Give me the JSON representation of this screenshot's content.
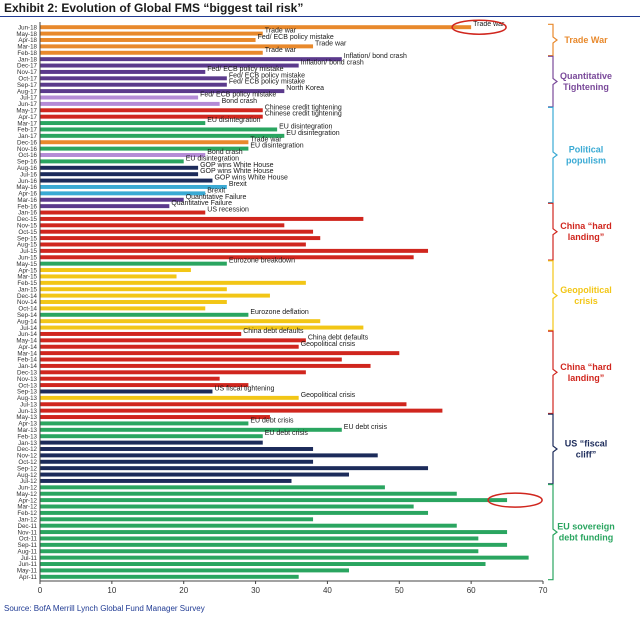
{
  "header": {
    "title": "Exhibit 2: Evolution of Global FMS “biggest tail risk”"
  },
  "footer": {
    "source": "Source:  BofA Merrill Lynch Global Fund Manager Survey"
  },
  "colors": {
    "trade": "#e8892c",
    "qt": "#7a4a9a",
    "purple": "#5b3a8c",
    "green": "#2aa560",
    "blue": "#3aaad4",
    "red": "#d0261e",
    "yellow": "#f2c616",
    "navy": "#1c2b5a",
    "violet": "#b48bd6",
    "bracket_trade": "#e8892c",
    "bracket_qt": "#7a4a9a",
    "bracket_pop": "#3aaad4",
    "bracket_china": "#d0261e",
    "bracket_geo": "#f2c616",
    "bracket_fiscal": "#1c2b5a",
    "bracket_eu": "#2aa560",
    "highlight": "#d0261e",
    "axis": "#444444"
  },
  "chart_data": {
    "type": "bar",
    "orientation": "horizontal",
    "title": "Exhibit 2: Evolution of Global FMS “biggest tail risk”",
    "xlabel": "",
    "ylabel": "",
    "xlim": [
      0,
      70
    ],
    "xticks": [
      0,
      10,
      20,
      30,
      40,
      50,
      60,
      70
    ],
    "grid": false,
    "bars": [
      {
        "date": "Jun-18",
        "value": 60,
        "color": "trade",
        "label": "Trade war"
      },
      {
        "date": "May-18",
        "value": 31,
        "color": "trade",
        "label": "Trade war"
      },
      {
        "date": "Apr-18",
        "value": 30,
        "color": "trade",
        "label": "Fed/ ECB policy mistake"
      },
      {
        "date": "Mar-18",
        "value": 38,
        "color": "trade",
        "label": "Trade war"
      },
      {
        "date": "Feb-18",
        "value": 31,
        "color": "trade",
        "label": "Trade war"
      },
      {
        "date": "Jan-18",
        "value": 42,
        "color": "purple",
        "label": "Inflation/ bond crash"
      },
      {
        "date": "Dec-17",
        "value": 36,
        "color": "purple",
        "label": "Inflation/ bond crash"
      },
      {
        "date": "Nov-17",
        "value": 23,
        "color": "purple",
        "label": "Fed/ ECB policy mistake"
      },
      {
        "date": "Oct-17",
        "value": 26,
        "color": "purple",
        "label": "Fed/ ECB policy mistake"
      },
      {
        "date": "Sep-17",
        "value": 26,
        "color": "purple",
        "label": "Fed/ ECB policy mistake"
      },
      {
        "date": "Aug-17",
        "value": 34,
        "color": "purple",
        "label": "North Korea"
      },
      {
        "date": "Jul-17",
        "value": 22,
        "color": "violet",
        "label": "Fed/ ECB policy mistake"
      },
      {
        "date": "Jun-17",
        "value": 25,
        "color": "violet",
        "label": "Bond crash"
      },
      {
        "date": "May-17",
        "value": 31,
        "color": "red",
        "label": "Chinese credit tightening"
      },
      {
        "date": "Apr-17",
        "value": 31,
        "color": "red",
        "label": "Chinese credit tightening"
      },
      {
        "date": "Mar-17",
        "value": 23,
        "color": "green",
        "label": "EU disintegration"
      },
      {
        "date": "Feb-17",
        "value": 33,
        "color": "green",
        "label": "EU disintegration"
      },
      {
        "date": "Jan-17",
        "value": 34,
        "color": "green",
        "label": "EU disintegration"
      },
      {
        "date": "Dec-16",
        "value": 29,
        "color": "trade",
        "label": "Trade war"
      },
      {
        "date": "Nov-16",
        "value": 29,
        "color": "green",
        "label": "EU disintegration"
      },
      {
        "date": "Oct-16",
        "value": 23,
        "color": "violet",
        "label": "Bond crash"
      },
      {
        "date": "Sep-16",
        "value": 20,
        "color": "green",
        "label": "EU disintegration"
      },
      {
        "date": "Aug-16",
        "value": 22,
        "color": "navy",
        "label": "GOP wins White House"
      },
      {
        "date": "Jul-16",
        "value": 22,
        "color": "navy",
        "label": "GOP wins White House"
      },
      {
        "date": "Jun-16",
        "value": 24,
        "color": "navy",
        "label": "GOP wins White House"
      },
      {
        "date": "May-16",
        "value": 26,
        "color": "blue",
        "label": "Brexit"
      },
      {
        "date": "Apr-16",
        "value": 23,
        "color": "blue",
        "label": "Brexit"
      },
      {
        "date": "Mar-16",
        "value": 20,
        "color": "purple",
        "label": "Quantitative Failure"
      },
      {
        "date": "Feb-16",
        "value": 18,
        "color": "purple",
        "label": "Quantitative Failure"
      },
      {
        "date": "Jan-16",
        "value": 23,
        "color": "red",
        "label": "US recession"
      },
      {
        "date": "Dec-15",
        "value": 45,
        "color": "red",
        "label": ""
      },
      {
        "date": "Nov-15",
        "value": 34,
        "color": "red",
        "label": ""
      },
      {
        "date": "Oct-15",
        "value": 38,
        "color": "red",
        "label": ""
      },
      {
        "date": "Sep-15",
        "value": 39,
        "color": "red",
        "label": ""
      },
      {
        "date": "Aug-15",
        "value": 37,
        "color": "red",
        "label": ""
      },
      {
        "date": "Jul-15",
        "value": 54,
        "color": "red",
        "label": ""
      },
      {
        "date": "Jun-15",
        "value": 52,
        "color": "red",
        "label": ""
      },
      {
        "date": "May-15",
        "value": 26,
        "color": "green",
        "label": "Eurozone breakdown"
      },
      {
        "date": "Apr-15",
        "value": 21,
        "color": "yellow",
        "label": ""
      },
      {
        "date": "Mar-15",
        "value": 19,
        "color": "yellow",
        "label": ""
      },
      {
        "date": "Feb-15",
        "value": 37,
        "color": "yellow",
        "label": ""
      },
      {
        "date": "Jan-15",
        "value": 26,
        "color": "yellow",
        "label": ""
      },
      {
        "date": "Dec-14",
        "value": 32,
        "color": "yellow",
        "label": ""
      },
      {
        "date": "Nov-14",
        "value": 26,
        "color": "yellow",
        "label": ""
      },
      {
        "date": "Oct-14",
        "value": 23,
        "color": "yellow",
        "label": ""
      },
      {
        "date": "Sep-14",
        "value": 29,
        "color": "green",
        "label": "Eurozone deflation"
      },
      {
        "date": "Aug-14",
        "value": 39,
        "color": "yellow",
        "label": ""
      },
      {
        "date": "Jul-14",
        "value": 45,
        "color": "yellow",
        "label": ""
      },
      {
        "date": "Jun-14",
        "value": 28,
        "color": "red",
        "label": "China debt defaults"
      },
      {
        "date": "May-14",
        "value": 37,
        "color": "red",
        "label": "China debt defaults"
      },
      {
        "date": "Apr-14",
        "value": 36,
        "color": "red",
        "label": "Geopolitical crisis"
      },
      {
        "date": "Mar-14",
        "value": 50,
        "color": "red",
        "label": ""
      },
      {
        "date": "Feb-14",
        "value": 42,
        "color": "red",
        "label": ""
      },
      {
        "date": "Jan-14",
        "value": 46,
        "color": "red",
        "label": ""
      },
      {
        "date": "Dec-13",
        "value": 37,
        "color": "red",
        "label": ""
      },
      {
        "date": "Nov-13",
        "value": 25,
        "color": "red",
        "label": ""
      },
      {
        "date": "Oct-13",
        "value": 29,
        "color": "red",
        "label": ""
      },
      {
        "date": "Sep-13",
        "value": 24,
        "color": "navy",
        "label": "US fiscal tightening"
      },
      {
        "date": "Aug-13",
        "value": 36,
        "color": "yellow",
        "label": "Geopolitical crisis"
      },
      {
        "date": "Jul-13",
        "value": 51,
        "color": "red",
        "label": ""
      },
      {
        "date": "Jun-13",
        "value": 56,
        "color": "red",
        "label": ""
      },
      {
        "date": "May-13",
        "value": 32,
        "color": "red",
        "label": ""
      },
      {
        "date": "Apr-13",
        "value": 29,
        "color": "green",
        "label": "EU debt crisis"
      },
      {
        "date": "Mar-13",
        "value": 42,
        "color": "green",
        "label": "EU debt crisis"
      },
      {
        "date": "Feb-13",
        "value": 31,
        "color": "green",
        "label": "EU debt crisis"
      },
      {
        "date": "Jan-13",
        "value": 31,
        "color": "navy",
        "label": ""
      },
      {
        "date": "Dec-12",
        "value": 38,
        "color": "navy",
        "label": ""
      },
      {
        "date": "Nov-12",
        "value": 47,
        "color": "navy",
        "label": ""
      },
      {
        "date": "Oct-12",
        "value": 38,
        "color": "navy",
        "label": ""
      },
      {
        "date": "Sep-12",
        "value": 54,
        "color": "navy",
        "label": ""
      },
      {
        "date": "Aug-12",
        "value": 43,
        "color": "navy",
        "label": ""
      },
      {
        "date": "Jul-12",
        "value": 35,
        "color": "navy",
        "label": ""
      },
      {
        "date": "Jun-12",
        "value": 48,
        "color": "green",
        "label": ""
      },
      {
        "date": "May-12",
        "value": 58,
        "color": "green",
        "label": ""
      },
      {
        "date": "Apr-12",
        "value": 65,
        "color": "green",
        "label": ""
      },
      {
        "date": "Mar-12",
        "value": 52,
        "color": "green",
        "label": ""
      },
      {
        "date": "Feb-12",
        "value": 54,
        "color": "green",
        "label": ""
      },
      {
        "date": "Jan-12",
        "value": 38,
        "color": "green",
        "label": ""
      },
      {
        "date": "Dec-11",
        "value": 58,
        "color": "green",
        "label": ""
      },
      {
        "date": "Nov-11",
        "value": 65,
        "color": "green",
        "label": ""
      },
      {
        "date": "Oct-11",
        "value": 61,
        "color": "green",
        "label": ""
      },
      {
        "date": "Sep-11",
        "value": 65,
        "color": "green",
        "label": ""
      },
      {
        "date": "Aug-11",
        "value": 61,
        "color": "green",
        "label": ""
      },
      {
        "date": "Jul-11",
        "value": 68,
        "color": "green",
        "label": ""
      },
      {
        "date": "Jun-11",
        "value": 62,
        "color": "green",
        "label": ""
      },
      {
        "date": "May-11",
        "value": 43,
        "color": "green",
        "label": ""
      },
      {
        "date": "Apr-11",
        "value": 36,
        "color": "green",
        "label": ""
      }
    ],
    "groups": [
      {
        "name": "Trade War",
        "color": "bracket_trade",
        "from": "Jun-18",
        "to": "Feb-18"
      },
      {
        "name": "Quantitative Tightening",
        "color": "bracket_qt",
        "from": "Jan-18",
        "to": "Jun-17"
      },
      {
        "name": "Political populism",
        "color": "bracket_pop",
        "from": "May-17",
        "to": "Mar-16"
      },
      {
        "name": "China “hard landing”",
        "color": "bracket_china",
        "from": "Feb-16",
        "to": "Jun-15"
      },
      {
        "name": "Geopolitical crisis",
        "color": "bracket_geo",
        "from": "May-15",
        "to": "Jul-14"
      },
      {
        "name": "China “hard landing”",
        "color": "bracket_china",
        "from": "Jun-14",
        "to": "Jun-13"
      },
      {
        "name": "US “fiscal cliff”",
        "color": "bracket_fiscal",
        "from": "May-13",
        "to": "Jul-12"
      },
      {
        "name": "EU sovereign debt funding",
        "color": "bracket_eu",
        "from": "Jun-12",
        "to": "Apr-11"
      }
    ],
    "highlights": [
      {
        "date": "Jun-18",
        "value": 60
      },
      {
        "date": "Apr-12",
        "value": 65
      }
    ]
  }
}
